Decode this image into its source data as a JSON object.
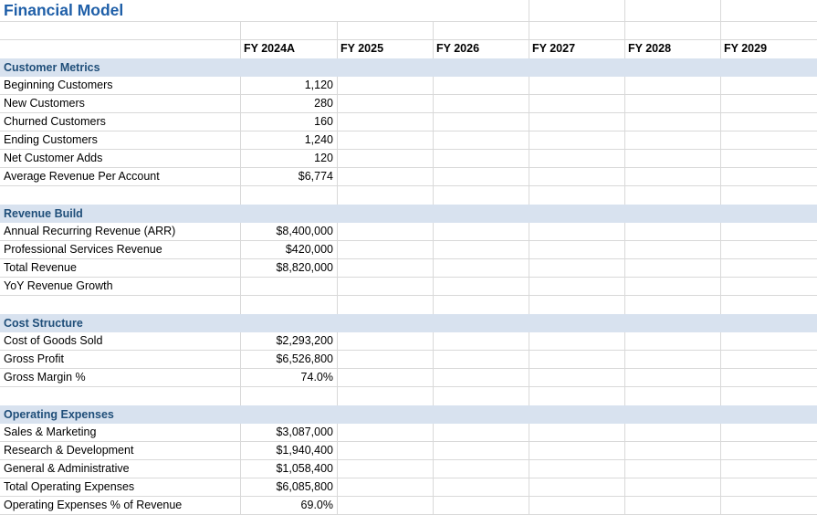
{
  "title": "Financial Model",
  "columns": [
    "FY 2024A",
    "FY 2025",
    "FY 2026",
    "FY 2027",
    "FY 2028",
    "FY 2029"
  ],
  "sections": [
    {
      "name": "Customer Metrics",
      "spacer_after": true,
      "rows": [
        {
          "label": "Beginning Customers",
          "values": [
            "1,120",
            "",
            "",
            "",
            "",
            ""
          ]
        },
        {
          "label": "New Customers",
          "values": [
            "280",
            "",
            "",
            "",
            "",
            ""
          ]
        },
        {
          "label": "Churned Customers",
          "values": [
            "160",
            "",
            "",
            "",
            "",
            ""
          ]
        },
        {
          "label": "Ending Customers",
          "values": [
            "1,240",
            "",
            "",
            "",
            "",
            ""
          ]
        },
        {
          "label": "Net Customer Adds",
          "values": [
            "120",
            "",
            "",
            "",
            "",
            ""
          ]
        },
        {
          "label": "Average Revenue Per Account",
          "values": [
            "$6,774",
            "",
            "",
            "",
            "",
            ""
          ]
        }
      ]
    },
    {
      "name": "Revenue Build",
      "spacer_after": true,
      "rows": [
        {
          "label": "Annual Recurring Revenue (ARR)",
          "values": [
            "$8,400,000",
            "",
            "",
            "",
            "",
            ""
          ]
        },
        {
          "label": "Professional Services Revenue",
          "values": [
            "$420,000",
            "",
            "",
            "",
            "",
            ""
          ]
        },
        {
          "label": "Total Revenue",
          "values": [
            "$8,820,000",
            "",
            "",
            "",
            "",
            ""
          ]
        },
        {
          "label": "YoY Revenue Growth",
          "values": [
            "",
            "",
            "",
            "",
            "",
            ""
          ]
        }
      ]
    },
    {
      "name": "Cost Structure",
      "spacer_after": true,
      "rows": [
        {
          "label": "Cost of Goods Sold",
          "values": [
            "$2,293,200",
            "",
            "",
            "",
            "",
            ""
          ]
        },
        {
          "label": "Gross Profit",
          "values": [
            "$6,526,800",
            "",
            "",
            "",
            "",
            ""
          ]
        },
        {
          "label": "Gross Margin %",
          "values": [
            "74.0%",
            "",
            "",
            "",
            "",
            ""
          ]
        }
      ]
    },
    {
      "name": "Operating Expenses",
      "spacer_after": false,
      "rows": [
        {
          "label": "Sales & Marketing",
          "values": [
            "$3,087,000",
            "",
            "",
            "",
            "",
            ""
          ]
        },
        {
          "label": "Research & Development",
          "values": [
            "$1,940,400",
            "",
            "",
            "",
            "",
            ""
          ]
        },
        {
          "label": "General & Administrative",
          "values": [
            "$1,058,400",
            "",
            "",
            "",
            "",
            ""
          ]
        },
        {
          "label": "Total Operating Expenses",
          "values": [
            "$6,085,800",
            "",
            "",
            "",
            "",
            ""
          ]
        },
        {
          "label": "Operating Expenses % of Revenue",
          "values": [
            "69.0%",
            "",
            "",
            "",
            "",
            ""
          ]
        }
      ]
    }
  ],
  "colors": {
    "title_text": "#1F5FA8",
    "section_text": "#1F4E79",
    "section_band_bg": "#D8E2EF",
    "gridline": "#D9D9D9",
    "cell_text": "#000000",
    "background": "#FFFFFF"
  }
}
